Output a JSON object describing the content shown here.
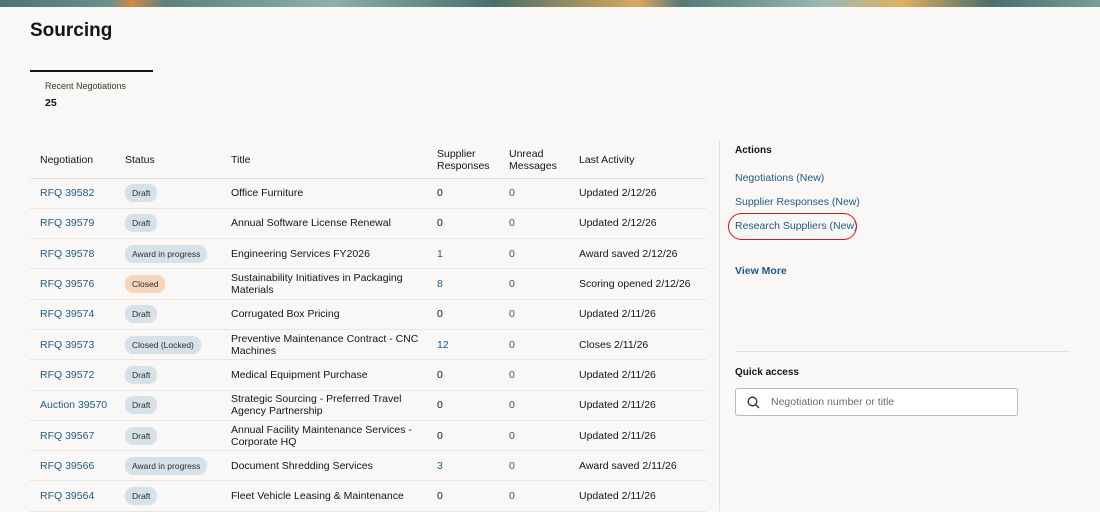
{
  "page": {
    "title": "Sourcing"
  },
  "metric": {
    "label": "Recent Negotiations",
    "value": "25"
  },
  "table": {
    "headers": [
      "Negotiation",
      "Status",
      "Title",
      "Supplier Responses",
      "Unread Messages",
      "Last Activity"
    ],
    "rows": [
      {
        "id": "RFQ 39582",
        "status": "Draft",
        "title": "Office Furniture",
        "responses": "0",
        "unread": "0",
        "activity": "Updated 2/12/26"
      },
      {
        "id": "RFQ 39579",
        "status": "Draft",
        "title": "Annual Software License Renewal",
        "responses": "0",
        "unread": "0",
        "activity": "Updated 2/12/26"
      },
      {
        "id": "RFQ 39578",
        "status": "Award in progress",
        "title": "Engineering Services FY2026",
        "responses": "1",
        "unread": "0",
        "activity": "Award saved 2/12/26"
      },
      {
        "id": "RFQ 39576",
        "status": "Closed",
        "title": "Sustainability Initiatives in Packaging Materials",
        "responses": "8",
        "unread": "0",
        "activity": "Scoring opened 2/12/26"
      },
      {
        "id": "RFQ 39574",
        "status": "Draft",
        "title": "Corrugated Box Pricing",
        "responses": "0",
        "unread": "0",
        "activity": "Updated 2/11/26"
      },
      {
        "id": "RFQ 39573",
        "status": "Closed (Locked)",
        "title": "Preventive Maintenance Contract - CNC Machines",
        "responses": "12",
        "unread": "0",
        "activity": "Closes 2/11/26"
      },
      {
        "id": "RFQ 39572",
        "status": "Draft",
        "title": "Medical Equipment Purchase",
        "responses": "0",
        "unread": "0",
        "activity": "Updated 2/11/26"
      },
      {
        "id": "Auction 39570",
        "status": "Draft",
        "title": "Strategic Sourcing - Preferred Travel Agency Partnership",
        "responses": "0",
        "unread": "0",
        "activity": "Updated 2/11/26"
      },
      {
        "id": "RFQ 39567",
        "status": "Draft",
        "title": "Annual Facility Maintenance Services - Corporate HQ",
        "responses": "0",
        "unread": "0",
        "activity": "Updated 2/11/26"
      },
      {
        "id": "RFQ 39566",
        "status": "Award in progress",
        "title": "Document Shredding Services",
        "responses": "3",
        "unread": "0",
        "activity": "Award saved 2/11/26"
      },
      {
        "id": "RFQ 39564",
        "status": "Draft",
        "title": "Fleet Vehicle Leasing & Maintenance",
        "responses": "0",
        "unread": "0",
        "activity": "Updated 2/11/26"
      }
    ]
  },
  "actions": {
    "title": "Actions",
    "items": [
      "Negotiations (New)",
      "Supplier Responses (New)",
      "Research Suppliers (New)"
    ],
    "view_more": "View More"
  },
  "quick_access": {
    "title": "Quick access",
    "placeholder": "Negotiation number or title",
    "icon": "search-icon"
  },
  "colors": {
    "link": "#1f5a85",
    "annotation": "#e0141b",
    "badge": "#d6e2ea",
    "badge_closed": "#f6d5bb"
  }
}
